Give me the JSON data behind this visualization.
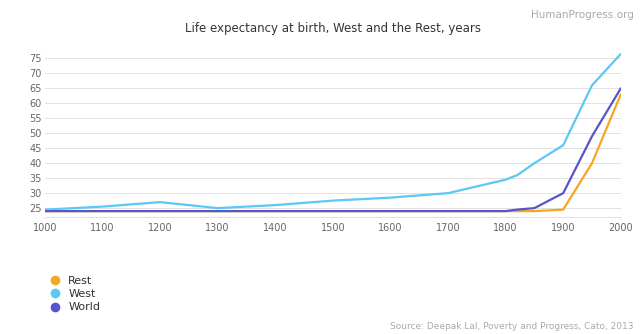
{
  "title": "Life expectancy at birth, West and the Rest, years",
  "watermark": "HumanProgress.org",
  "source": "Source: Deepak Lal, Poverty and Progress, Cato, 2013",
  "series": {
    "Rest": {
      "color": "#F5A623",
      "x": [
        1000,
        1100,
        1200,
        1300,
        1400,
        1500,
        1600,
        1700,
        1800,
        1820,
        1850,
        1900,
        1950,
        2000
      ],
      "y": [
        24.0,
        24.0,
        24.0,
        24.0,
        24.0,
        24.0,
        24.0,
        24.0,
        24.0,
        24.0,
        24.0,
        24.5,
        40.0,
        63.0
      ]
    },
    "West": {
      "color": "#5BC8F5",
      "x": [
        1000,
        1100,
        1200,
        1300,
        1400,
        1500,
        1600,
        1700,
        1800,
        1820,
        1850,
        1900,
        1950,
        2000
      ],
      "y": [
        24.5,
        25.5,
        27.0,
        25.0,
        26.0,
        27.5,
        28.5,
        30.0,
        34.5,
        36.0,
        40.0,
        46.0,
        66.0,
        76.5
      ]
    },
    "World": {
      "color": "#5555CC",
      "x": [
        1000,
        1100,
        1200,
        1300,
        1400,
        1500,
        1600,
        1700,
        1800,
        1820,
        1850,
        1900,
        1950,
        2000
      ],
      "y": [
        24.0,
        24.0,
        24.0,
        24.0,
        24.0,
        24.0,
        24.0,
        24.0,
        24.0,
        24.5,
        25.0,
        30.0,
        49.0,
        65.0
      ]
    }
  },
  "xlim": [
    1000,
    2000
  ],
  "ylim": [
    22,
    80
  ],
  "xticks": [
    1000,
    1100,
    1200,
    1300,
    1400,
    1500,
    1600,
    1700,
    1800,
    1900,
    2000
  ],
  "yticks": [
    25,
    30,
    35,
    40,
    45,
    50,
    55,
    60,
    65,
    70,
    75
  ],
  "bg_color": "#FFFFFF",
  "grid_color": "#DDDDDD",
  "title_fontsize": 8.5,
  "tick_fontsize": 7,
  "legend_fontsize": 8,
  "watermark_fontsize": 7.5,
  "source_fontsize": 6.5
}
